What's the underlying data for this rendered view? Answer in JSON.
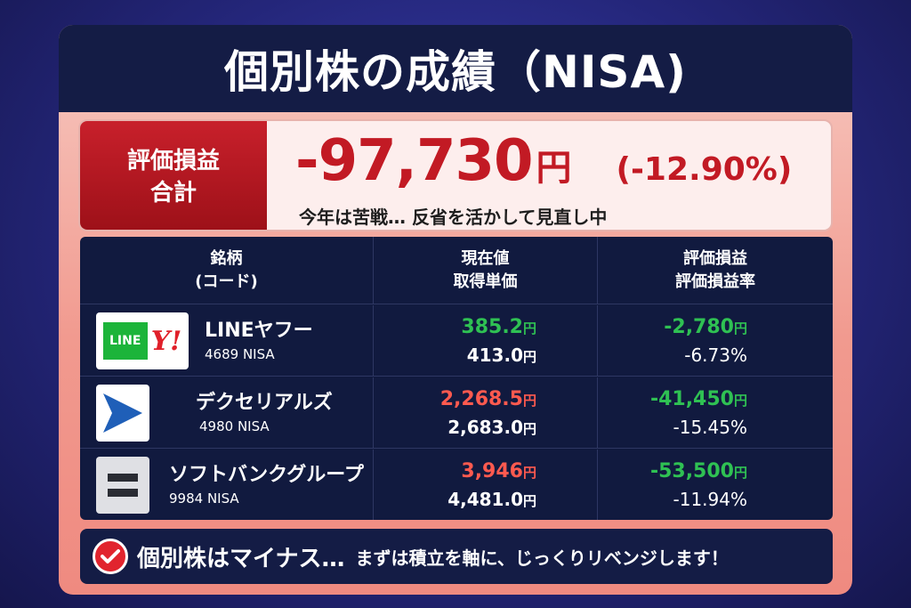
{
  "title": "個別株の成績（NISA)",
  "summary": {
    "label_line1": "評価損益",
    "label_line2": "合計",
    "amount": "-97,730",
    "amount_unit": "円",
    "percent": "(-12.90%)",
    "note": "今年は苦戦… 反省を活かして見直し中"
  },
  "table": {
    "headers": {
      "col1_line1": "銘柄",
      "col1_line2": "(コード)",
      "col2_line1": "現在値",
      "col2_line2": "取得単価",
      "col3_line1": "評価損益",
      "col3_line2": "評価損益率"
    },
    "rows": [
      {
        "name": "LINEヤフー",
        "code": "4689 NISA",
        "current": "385.2",
        "acquired": "413.0",
        "pl": "-2,780",
        "pl_rate": "-6.73%",
        "unit": "円",
        "current_color": "#2fc153",
        "logo": "line-yahoo-logo",
        "logo_line_text": "LINE",
        "logo_y_text": "Y!"
      },
      {
        "name": "デクセリアルズ",
        "code": "4980 NISA",
        "current": "2,268.5",
        "acquired": "2,683.0",
        "pl": "-41,450",
        "pl_rate": "-15.45%",
        "unit": "円",
        "current_color": "#ff5a4f",
        "logo": "dexerials-logo"
      },
      {
        "name": "ソフトバンクグループ",
        "code": "9984 NISA",
        "current": "3,946",
        "acquired": "4,481.0",
        "pl": "-53,500",
        "pl_rate": "-11.94%",
        "unit": "円",
        "current_color": "#ff5a4f",
        "logo": "softbank-logo"
      }
    ]
  },
  "footer": {
    "main": "個別株はマイナス…",
    "sub": "まずは積立を軸に、じっくりリベンジします！",
    "icon": "check-icon"
  },
  "colors": {
    "negative_red": "#c21a24",
    "gain_green": "#2fc153",
    "navy": "#141c45"
  }
}
